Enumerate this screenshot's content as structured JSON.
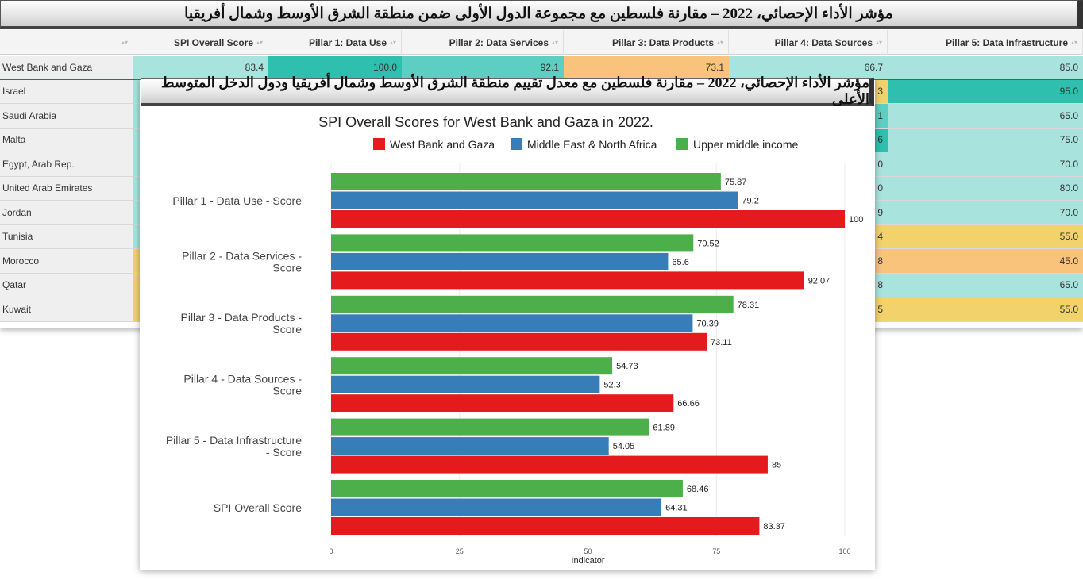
{
  "banner_top": "مؤشر الأداء الإحصائي، 2022 – مقارنة فلسطين مع مجموعة الدول الأولى ضمن منطقة الشرق الأوسط وشمال أفريقيا",
  "banner_chart": "مؤشر الأداء الإحصائي، 2022 – مقارنة فلسطين مع معدل تقييم منطقة الشرق الأوسط وشمال أفريقيا ودول الدخل المتوسط الأعلى",
  "table": {
    "headers": [
      "",
      "SPI Overall Score",
      "Pillar 1: Data Use",
      "Pillar 2: Data Services",
      "Pillar 3: Data Products",
      "Pillar 4: Data Sources",
      "Pillar 5: Data Infrastructure"
    ],
    "rows": [
      {
        "name": "West Bank and Gaza",
        "cells": [
          "83.4",
          "100.0",
          "92.1",
          "73.1",
          "66.7",
          "85.0"
        ],
        "colors": [
          "#a9e3dd",
          "#2ebfaf",
          "#5ccfc2",
          "#f9c37c",
          "#a9e3dd",
          "#a9e3dd"
        ]
      },
      {
        "name": "Israel",
        "cells": [
          "",
          "",
          "",
          "",
          "3",
          "95.0"
        ],
        "colors": [
          "#a9e3dd",
          "#a9e3dd",
          "#a9e3dd",
          "#a9e3dd",
          "#f2d36b",
          "#2ebfaf"
        ]
      },
      {
        "name": "Saudi Arabia",
        "cells": [
          "",
          "",
          "",
          "",
          "1",
          "65.0"
        ],
        "colors": [
          "#a9e3dd",
          "#a9e3dd",
          "#a9e3dd",
          "#a9e3dd",
          "#5ccfc2",
          "#a9e3dd"
        ]
      },
      {
        "name": "Malta",
        "cells": [
          "",
          "",
          "",
          "",
          "6",
          "75.0"
        ],
        "colors": [
          "#a9e3dd",
          "#a9e3dd",
          "#a9e3dd",
          "#a9e3dd",
          "#2ebfaf",
          "#a9e3dd"
        ]
      },
      {
        "name": "Egypt, Arab Rep.",
        "cells": [
          "",
          "",
          "",
          "",
          "0",
          "70.0"
        ],
        "colors": [
          "#a9e3dd",
          "#a9e3dd",
          "#a9e3dd",
          "#a9e3dd",
          "#a9e3dd",
          "#a9e3dd"
        ]
      },
      {
        "name": "United Arab Emirates",
        "cells": [
          "",
          "",
          "",
          "",
          "0",
          "80.0"
        ],
        "colors": [
          "#a9e3dd",
          "#a9e3dd",
          "#a9e3dd",
          "#a9e3dd",
          "#a9e3dd",
          "#a9e3dd"
        ]
      },
      {
        "name": "Jordan",
        "cells": [
          "",
          "",
          "",
          "",
          "9",
          "70.0"
        ],
        "colors": [
          "#a9e3dd",
          "#a9e3dd",
          "#a9e3dd",
          "#a9e3dd",
          "#a9e3dd",
          "#a9e3dd"
        ]
      },
      {
        "name": "Tunisia",
        "cells": [
          "",
          "",
          "",
          "",
          "4",
          "55.0"
        ],
        "colors": [
          "#a9e3dd",
          "#a9e3dd",
          "#a9e3dd",
          "#a9e3dd",
          "#f2d36b",
          "#f2d36b"
        ]
      },
      {
        "name": "Morocco",
        "cells": [
          "",
          "",
          "",
          "",
          "8",
          "45.0"
        ],
        "colors": [
          "#f2d36b",
          "#a9e3dd",
          "#a9e3dd",
          "#a9e3dd",
          "#f9c37c",
          "#f9c37c"
        ]
      },
      {
        "name": "Qatar",
        "cells": [
          "",
          "",
          "",
          "",
          "8",
          "65.0"
        ],
        "colors": [
          "#f2d36b",
          "#a9e3dd",
          "#a9e3dd",
          "#a9e3dd",
          "#a9e3dd",
          "#a9e3dd"
        ]
      },
      {
        "name": "Kuwait",
        "cells": [
          "",
          "",
          "",
          "",
          "5",
          "55.0"
        ],
        "colors": [
          "#f2d36b",
          "#a9e3dd",
          "#a9e3dd",
          "#a9e3dd",
          "#f2d36b",
          "#f2d36b"
        ]
      }
    ]
  },
  "chart_data": {
    "type": "bar",
    "orientation": "horizontal",
    "title": "SPI Overall Scores for West Bank and Gaza in 2022.",
    "xlabel": "Indicator",
    "ylabel": "",
    "xlim": [
      0,
      100
    ],
    "xticks": [
      "0",
      "25",
      "50",
      "75",
      "100"
    ],
    "legend_position": "top",
    "grid": true,
    "categories": [
      [
        "Pillar 1 - Data Use - Score"
      ],
      [
        "Pillar 2 - Data Services -",
        "Score"
      ],
      [
        "Pillar 3 - Data Products -",
        "Score"
      ],
      [
        "Pillar 4 - Data Sources -",
        "Score"
      ],
      [
        "Pillar 5 - Data Infrastructure",
        "- Score"
      ],
      [
        "SPI Overall Score"
      ]
    ],
    "legend_order": [
      "West Bank and Gaza",
      "Middle East & North Africa",
      "Upper middle income"
    ],
    "series": [
      {
        "name": "Upper middle income",
        "color": "#4daf4a",
        "values": [
          75.87,
          70.52,
          78.31,
          54.73,
          61.89,
          68.46
        ],
        "labels": [
          "75.87",
          "70.52",
          "78.31",
          "54.73",
          "61.89",
          "68.46"
        ]
      },
      {
        "name": "Middle East & North Africa",
        "color": "#377eb8",
        "values": [
          79.2,
          65.6,
          70.39,
          52.3,
          54.05,
          64.31
        ],
        "labels": [
          "79.2",
          "65.6",
          "70.39",
          "52.3",
          "54.05",
          "64.31"
        ]
      },
      {
        "name": "West Bank and Gaza",
        "color": "#e41a1c",
        "values": [
          100,
          92.07,
          73.11,
          66.66,
          85,
          83.37
        ],
        "labels": [
          "100",
          "92.07",
          "73.11",
          "66.66",
          "85",
          "83.37"
        ]
      }
    ]
  }
}
